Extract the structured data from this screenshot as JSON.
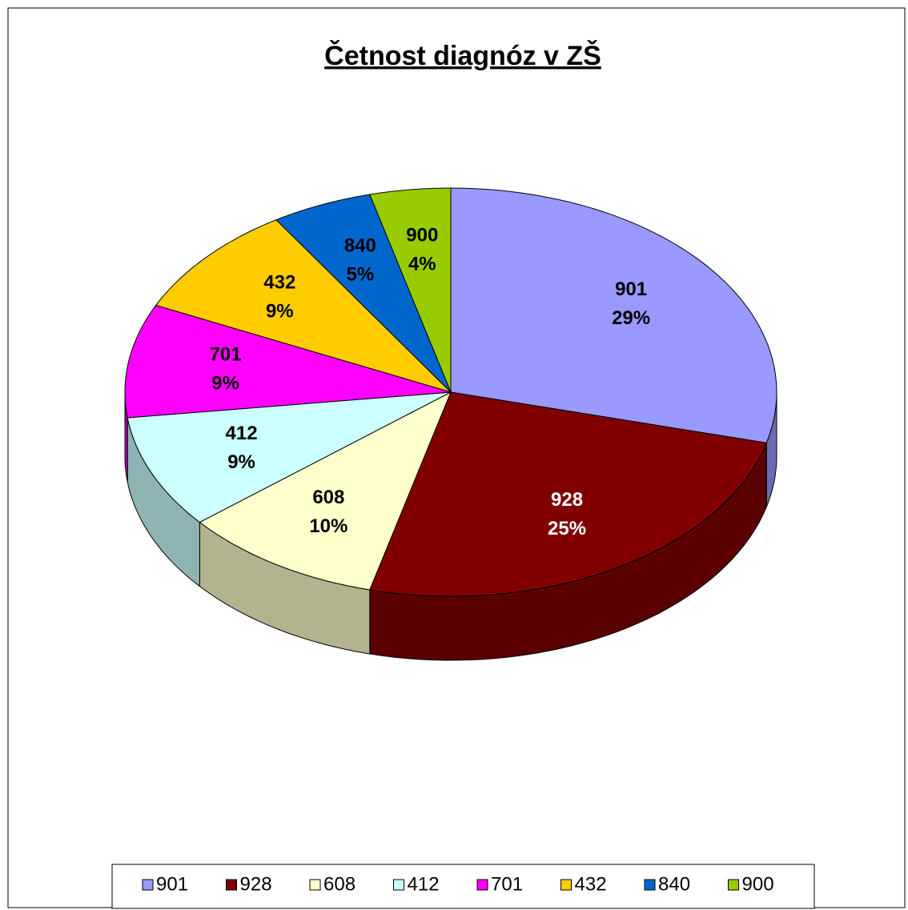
{
  "chart_data": {
    "type": "pie",
    "title": "Četnost diagnóz v ZŠ",
    "categories": [
      "901",
      "928",
      "608",
      "412",
      "701",
      "432",
      "840",
      "900"
    ],
    "values": [
      29,
      25,
      10,
      9,
      9,
      9,
      5,
      4
    ],
    "value_labels": [
      "29%",
      "25%",
      "10%",
      "9%",
      "9%",
      "9%",
      "5%",
      "4%"
    ],
    "colors": [
      "#9999ff",
      "#800000",
      "#ffffcc",
      "#ccffff",
      "#ff00ff",
      "#ffcc00",
      "#0066cc",
      "#99cc00"
    ],
    "legend": "bottom"
  }
}
